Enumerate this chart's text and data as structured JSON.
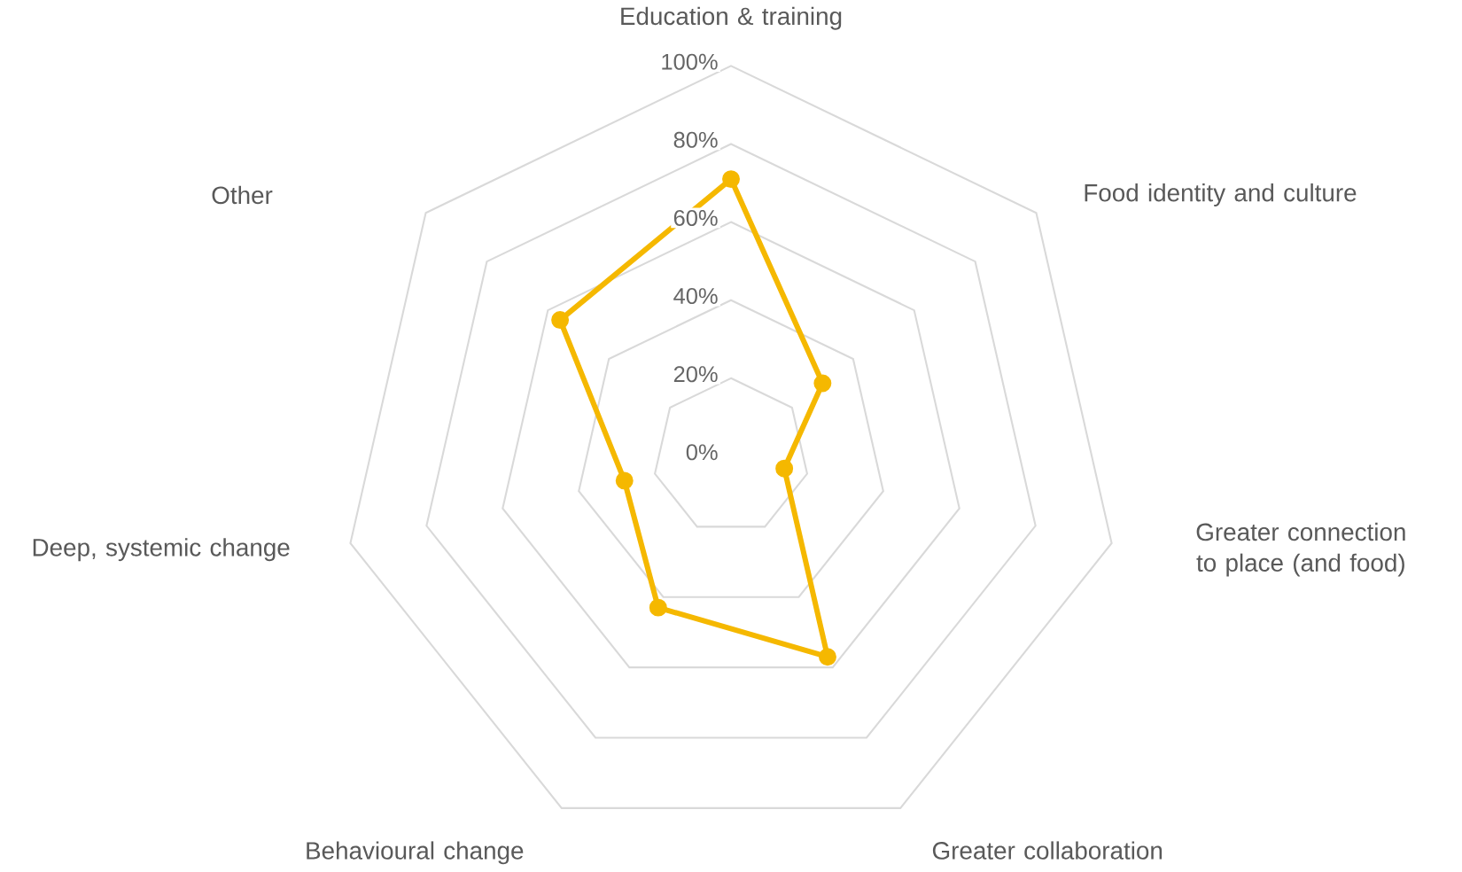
{
  "chart_data": {
    "type": "radar",
    "categories": [
      "Education & training",
      "Food identity and culture",
      "Greater connection to place (and food)",
      "Greater collaboration",
      "Behavioural change",
      "Deep, systemic change",
      "Other"
    ],
    "series": [
      {
        "color": "#f5b800",
        "values": [
          71,
          30,
          14,
          57,
          43,
          28,
          56
        ]
      }
    ],
    "ylim": [
      0,
      100
    ],
    "yticks": [
      {
        "value": 0,
        "label": "0%"
      },
      {
        "value": 20,
        "label": "20%"
      },
      {
        "value": 40,
        "label": "40%"
      },
      {
        "value": 60,
        "label": "60%"
      },
      {
        "value": 80,
        "label": "80%"
      },
      {
        "value": 100,
        "label": "100%"
      }
    ],
    "grid": true,
    "marker": "circle",
    "line_style": "solid"
  }
}
